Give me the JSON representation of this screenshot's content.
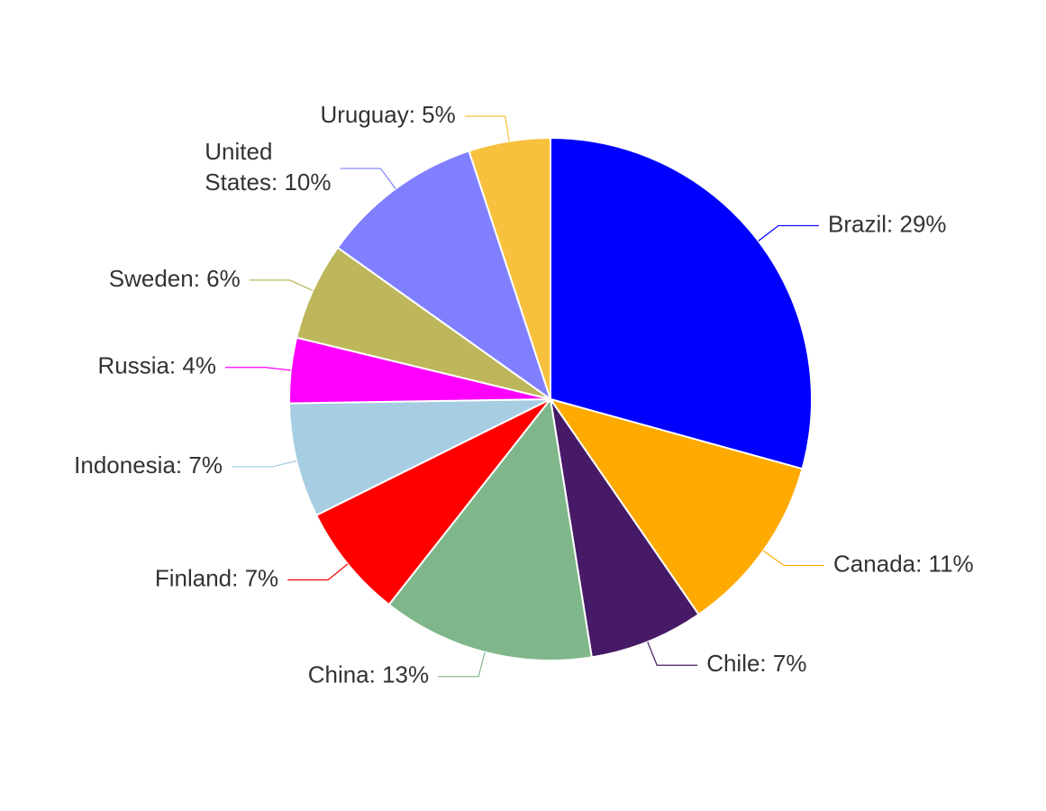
{
  "chart_data": {
    "type": "pie",
    "values": [
      29,
      11,
      7,
      13,
      7,
      7,
      4,
      6,
      10,
      5
    ],
    "value_labels": [
      "Brazil: 29%",
      "Canada: 11%",
      "Chile: 7%",
      "China: 13%",
      "Finland: 7%",
      "Indonesia: 7%",
      "Russia: 4%",
      "Sweden: 6%",
      "United States: 10%",
      "Uruguay: 5%"
    ],
    "colors": [
      "#0000ff",
      "#ffaa00",
      "#461a66",
      "#7fb78a",
      "#ff0000",
      "#a6cde2",
      "#ff00ff",
      "#bdb65a",
      "#8080ff",
      "#f7c03d"
    ]
  }
}
